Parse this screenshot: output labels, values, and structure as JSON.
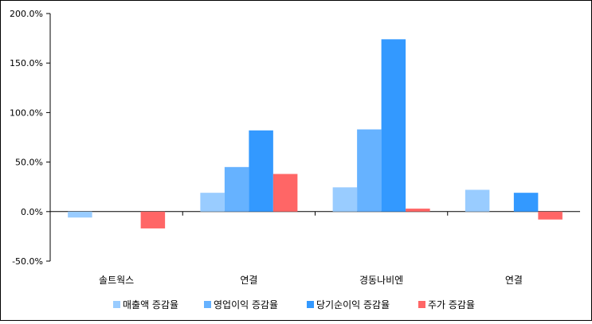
{
  "chart_data": {
    "type": "bar",
    "title": "",
    "xlabel": "",
    "ylabel": "",
    "categories": [
      "솔트웍스",
      "연결",
      "경동나비엔",
      "연결"
    ],
    "series": [
      {
        "name": "매출액 증감율",
        "color": "#99ccff",
        "values": [
          -6.0,
          19.0,
          24.5,
          22.0
        ]
      },
      {
        "name": "영업이익 증감율",
        "color": "#66b2ff",
        "values": [
          0.0,
          45.0,
          83.0,
          0.0
        ]
      },
      {
        "name": "당기순이익 증감율",
        "color": "#3399ff",
        "values": [
          0.0,
          82.0,
          174.0,
          19.0
        ]
      },
      {
        "name": "주가 증감율",
        "color": "#ff6666",
        "values": [
          -17.0,
          38.0,
          3.0,
          -8.0
        ]
      }
    ],
    "ylim": [
      -50,
      200
    ],
    "yticks": [
      "-50.0%",
      "0.0%",
      "50.0%",
      "100.0%",
      "150.0%",
      "200.0%"
    ],
    "grid": false,
    "legend_position": "bottom"
  }
}
